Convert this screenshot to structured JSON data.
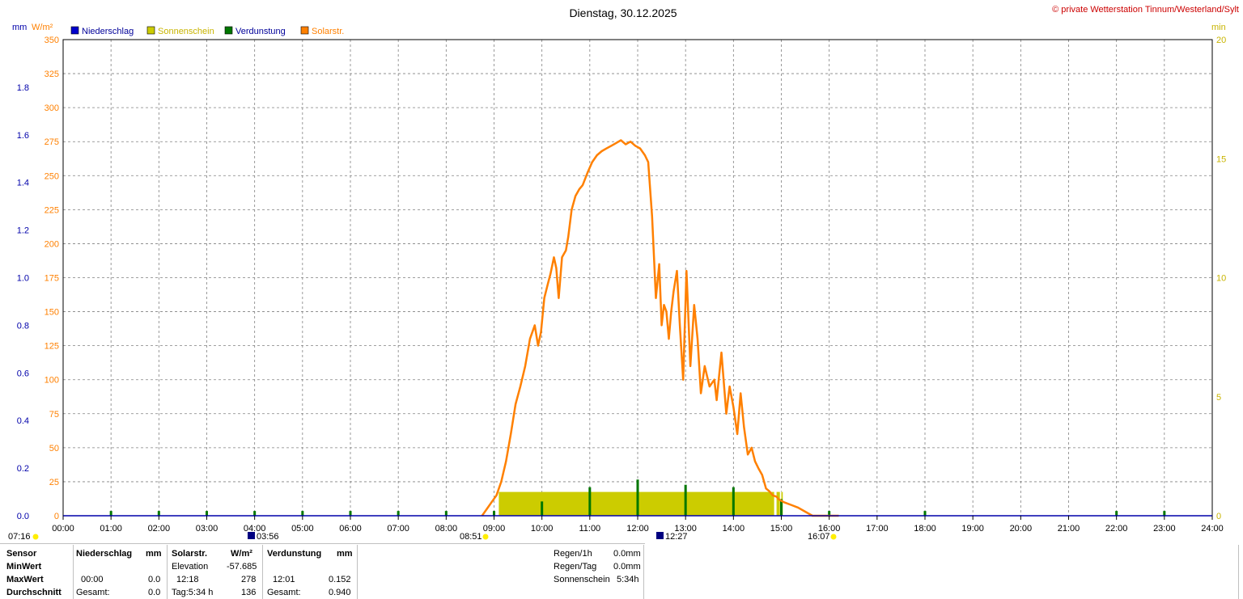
{
  "title": "Dienstag, 30.12.2025",
  "copyright": "© private Wetterstation Tinnum/Westerland/Sylt",
  "colors": {
    "precipitation": "#0000cc",
    "sunshine": "#cccc00",
    "evaporation": "#007700",
    "solar": "#ff8000",
    "sunshine_axis": "#c8b400",
    "grid": "#808080",
    "axis_left": "#0000aa"
  },
  "legend": [
    {
      "label": "Niederschlag",
      "color": "#0000cc",
      "text_color": "#000099"
    },
    {
      "label": "Sonnenschein",
      "color": "#cccc00",
      "text_color": "#c8b400"
    },
    {
      "label": "Verdunstung",
      "color": "#007700",
      "text_color": "#000099"
    },
    {
      "label": "Solarstr.",
      "color": "#ff8000",
      "text_color": "#ff8000"
    }
  ],
  "axis_units": {
    "mm": "mm",
    "wm2": "W/m²",
    "min": "min"
  },
  "chart_data": {
    "type": "line",
    "x_unit": "hour of day",
    "x_range": [
      0,
      24
    ],
    "x_ticks": [
      "00:00",
      "01:00",
      "02:00",
      "03:00",
      "04:00",
      "05:00",
      "06:00",
      "07:00",
      "08:00",
      "09:00",
      "10:00",
      "11:00",
      "12:00",
      "13:00",
      "14:00",
      "15:00",
      "16:00",
      "17:00",
      "18:00",
      "19:00",
      "20:00",
      "21:00",
      "22:00",
      "23:00",
      "24:00"
    ],
    "y_left_mm": {
      "range": [
        0,
        2.0
      ],
      "ticks": [
        "0.0",
        "0.2",
        "0.4",
        "0.6",
        "0.8",
        "1.0",
        "1.2",
        "1.4",
        "1.6",
        "1.8"
      ]
    },
    "y_solar": {
      "range": [
        0,
        350
      ],
      "ticks": [
        "0",
        "25",
        "50",
        "75",
        "100",
        "125",
        "150",
        "175",
        "200",
        "225",
        "250",
        "275",
        "300",
        "325",
        "350"
      ]
    },
    "y_right_min": {
      "range": [
        0,
        20
      ],
      "ticks": [
        "0",
        "5",
        "10",
        "15",
        "20"
      ]
    },
    "grid": true,
    "series": [
      {
        "name": "Solarstr.",
        "x": [
          8.75,
          8.85,
          8.95,
          9.05,
          9.15,
          9.25,
          9.35,
          9.45,
          9.55,
          9.65,
          9.75,
          9.85,
          9.92,
          9.98,
          10.05,
          10.12,
          10.18,
          10.25,
          10.3,
          10.35,
          10.42,
          10.5,
          10.55,
          10.62,
          10.7,
          10.78,
          10.85,
          10.95,
          11.05,
          11.15,
          11.25,
          11.35,
          11.45,
          11.55,
          11.65,
          11.75,
          11.85,
          11.95,
          12.05,
          12.15,
          12.22,
          12.3,
          12.38,
          12.45,
          12.5,
          12.55,
          12.6,
          12.65,
          12.7,
          12.75,
          12.82,
          12.88,
          12.95,
          13.02,
          13.1,
          13.18,
          13.25,
          13.32,
          13.4,
          13.5,
          13.6,
          13.65,
          13.75,
          13.85,
          13.92,
          14.0,
          14.08,
          14.15,
          14.22,
          14.3,
          14.38,
          14.45,
          14.52,
          14.6,
          14.68,
          14.75,
          14.82,
          14.9,
          14.95,
          15.05,
          15.2,
          15.35,
          15.5,
          15.65,
          15.8,
          15.95,
          16.05,
          16.15,
          16.2
        ],
        "y": [
          0,
          5,
          10,
          15,
          25,
          40,
          60,
          82,
          95,
          110,
          130,
          140,
          125,
          135,
          160,
          170,
          178,
          190,
          182,
          160,
          190,
          195,
          205,
          225,
          235,
          240,
          243,
          252,
          260,
          265,
          268,
          270,
          272,
          274,
          276,
          273,
          275,
          272,
          270,
          265,
          260,
          220,
          160,
          185,
          140,
          155,
          150,
          130,
          150,
          165,
          180,
          140,
          100,
          180,
          110,
          155,
          130,
          90,
          110,
          95,
          100,
          85,
          120,
          75,
          95,
          80,
          60,
          90,
          65,
          45,
          50,
          40,
          35,
          30,
          20,
          18,
          15,
          14,
          12,
          10,
          8,
          6,
          3,
          0,
          0,
          0,
          0,
          0,
          0
        ]
      },
      {
        "name": "Sonnenschein",
        "type": "bar",
        "x_start": 9.1,
        "x_end": 15.03,
        "y": 1
      }
    ],
    "evaporation_ticks_x": [
      1,
      2,
      3,
      4,
      5,
      6,
      7,
      8,
      9,
      10,
      11,
      12,
      13,
      14,
      15,
      16,
      18,
      22,
      23
    ],
    "evaporation_ticks_y": [
      0.02,
      0.02,
      0.02,
      0.02,
      0.02,
      0.02,
      0.02,
      0.02,
      0.02,
      0.06,
      0.12,
      0.152,
      0.13,
      0.12,
      0.07,
      0.02,
      0.02,
      0.02,
      0.02
    ]
  },
  "bottom_markers": {
    "sunrise_left": "07:16",
    "moon_1": "03:56",
    "sunrise": "08:51",
    "moon_2": "12:27",
    "sunset": "16:07"
  },
  "table": {
    "sensor": {
      "header": "Sensor",
      "rows": [
        "MinWert",
        "MaxWert",
        "Durchschnitt"
      ]
    },
    "niederschlag": {
      "header": "Niederschlag",
      "unit": "mm",
      "max_time": "00:00",
      "max": "0.0",
      "total_label": "Gesamt:",
      "total": "0.0"
    },
    "solar": {
      "header": "Solarstr.",
      "unit": "W/m²",
      "elevation_label": "Elevation",
      "elevation": "-57.685",
      "max_time": "12:18",
      "max": "278",
      "day_label": "Tag:5:34 h",
      "avg": "136"
    },
    "verdunstung": {
      "header": "Verdunstung",
      "unit": "mm",
      "max_time": "12:01",
      "max": "0.152",
      "total_label": "Gesamt:",
      "total": "0.940"
    },
    "extra": [
      {
        "label": "Regen/1h",
        "value": "0.0mm"
      },
      {
        "label": "Regen/Tag",
        "value": "0.0mm"
      },
      {
        "label": "Sonnenschein",
        "value": "5:34h"
      }
    ]
  }
}
